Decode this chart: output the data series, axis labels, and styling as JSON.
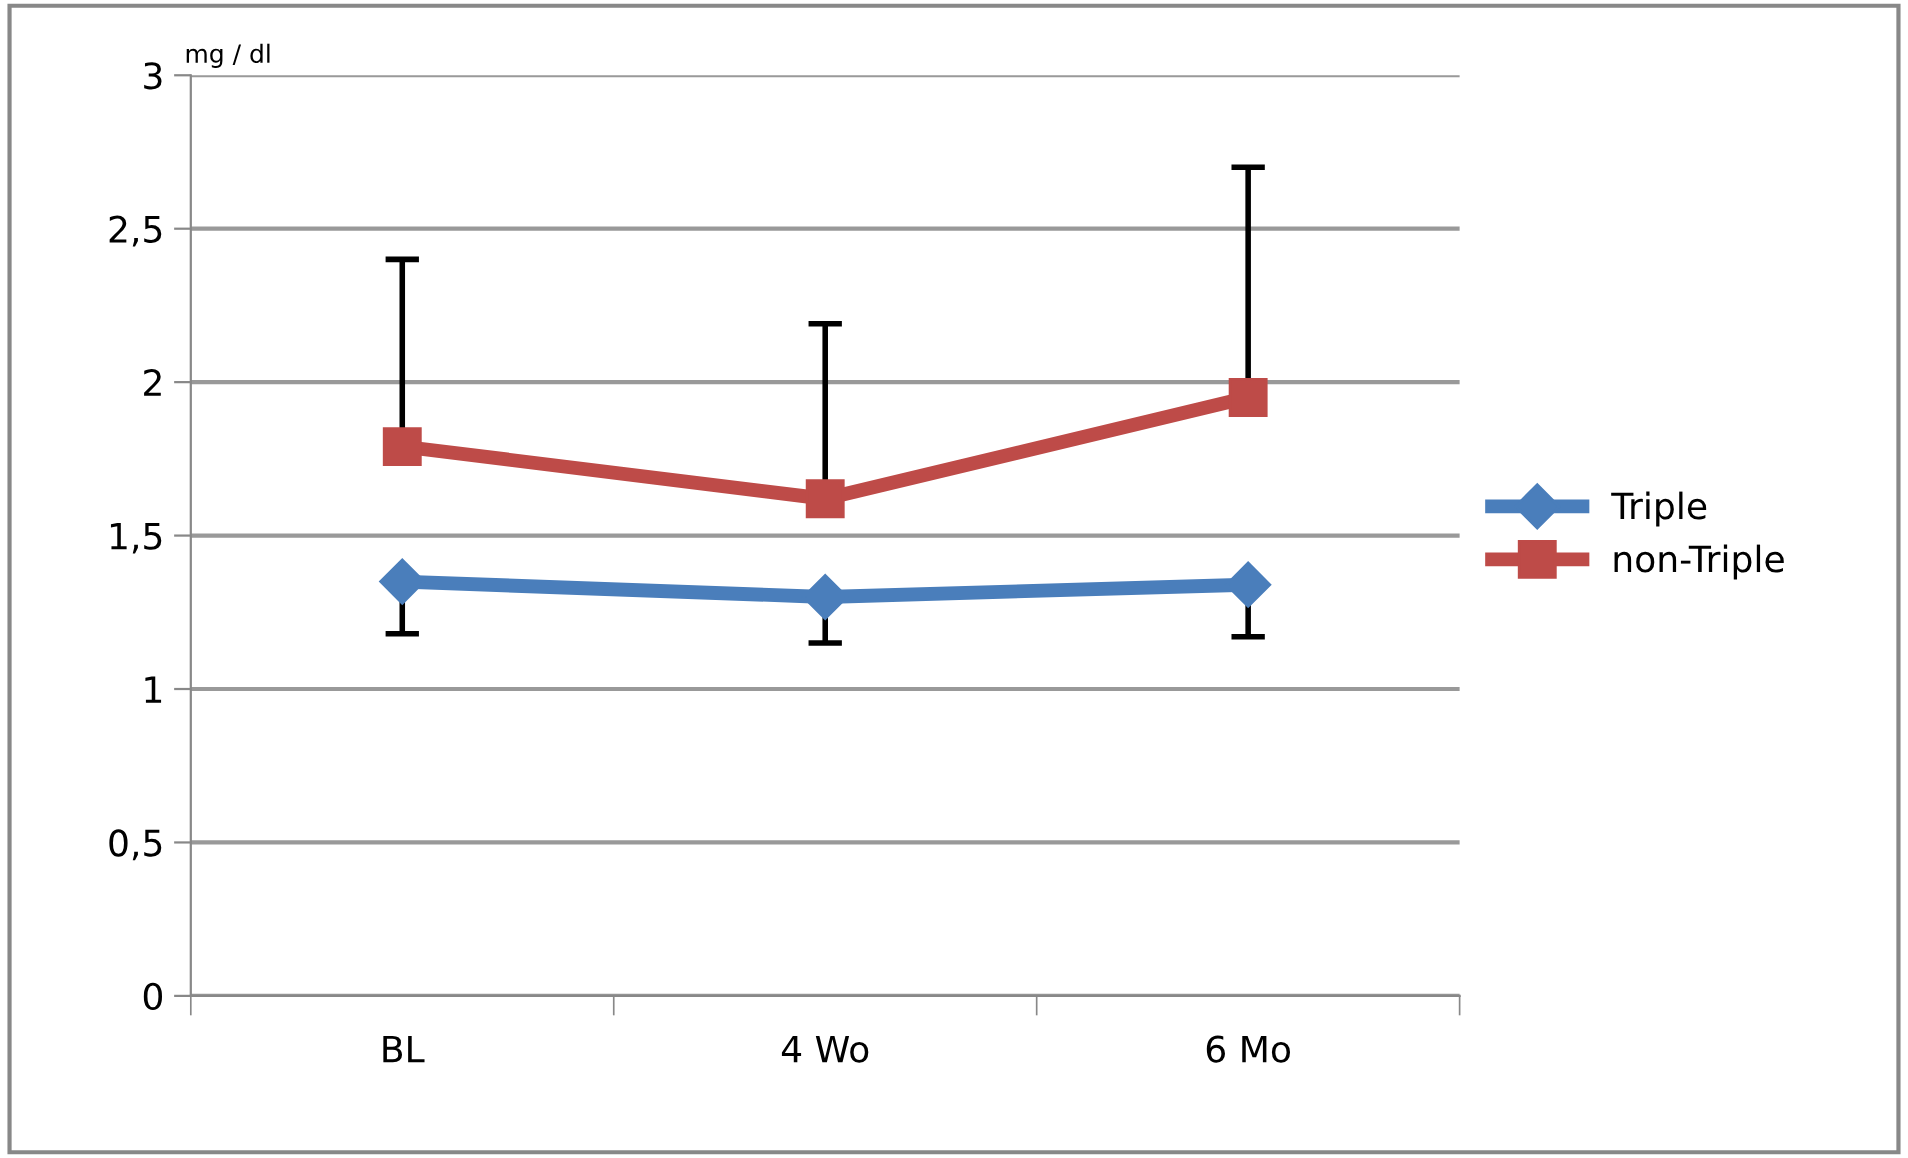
{
  "chart_data": {
    "type": "line",
    "ylabel": "mg / dl",
    "categories": [
      "BL",
      "4 Wo",
      "6 Mo"
    ],
    "series": [
      {
        "name": "Triple",
        "color": "#4a7ebb",
        "values": [
          1.35,
          1.3,
          1.34
        ],
        "marker": "diamond",
        "errors": [
          [
            1.18,
            1.35
          ],
          [
            1.15,
            1.3
          ],
          [
            1.17,
            1.34
          ]
        ]
      },
      {
        "name": "non-Triple",
        "color": "#be4b48",
        "values": [
          1.79,
          1.62,
          1.95
        ],
        "marker": "square",
        "errors": [
          [
            1.79,
            2.4
          ],
          [
            1.62,
            2.19
          ],
          [
            1.95,
            2.7
          ]
        ]
      }
    ],
    "ylim": [
      0,
      3
    ],
    "yticks": [
      0,
      {
        "value": 0.5,
        "label": "0,5"
      },
      1,
      {
        "value": 1.5,
        "label": "1,5"
      },
      2,
      {
        "value": 2.5,
        "label": "2,5"
      },
      3
    ],
    "grid": "y",
    "legend": "right",
    "line_style": "solid"
  }
}
